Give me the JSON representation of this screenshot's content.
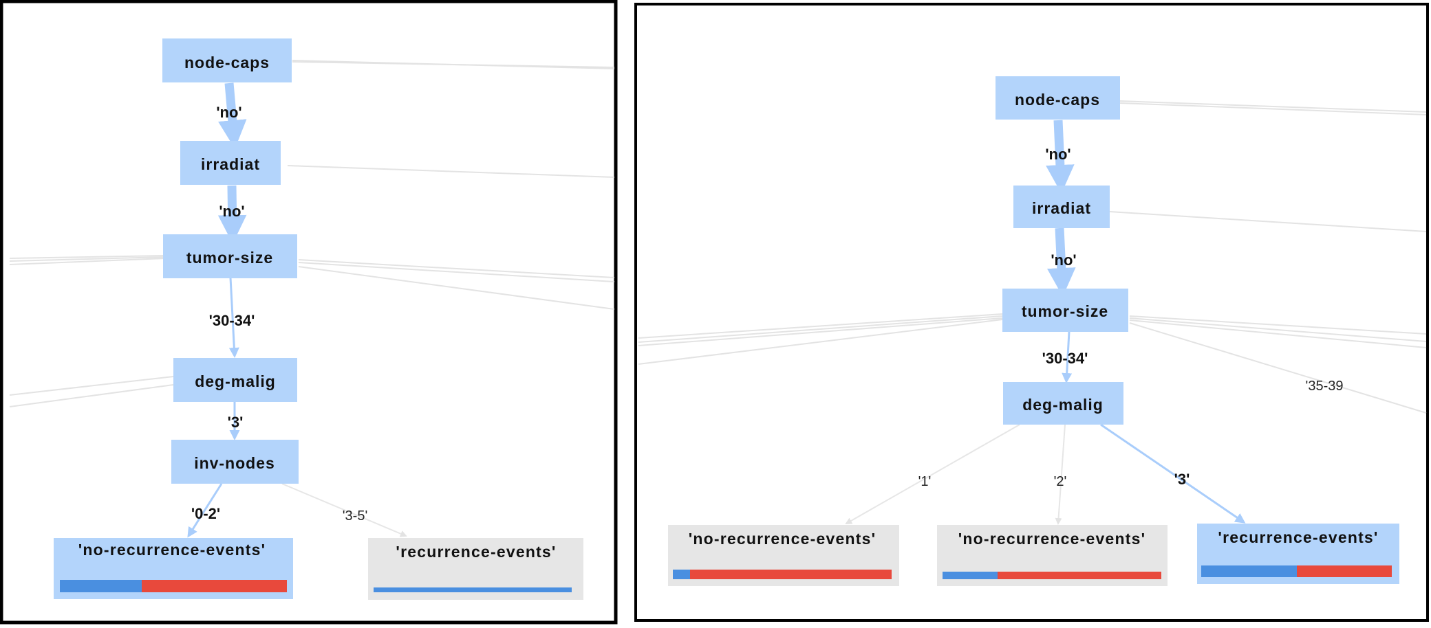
{
  "colors": {
    "node_fill": "#b3d4fb",
    "leaf_fill": "#e6e6e6",
    "bar_blue": "#4a8fe0",
    "bar_red": "#e8493c",
    "panel_border": "#000000"
  },
  "left": {
    "nodes": {
      "node_caps": "node-caps",
      "irradiat": "irradiat",
      "tumor_size": "tumor-size",
      "deg_malig": "deg-malig",
      "inv_nodes": "inv-nodes"
    },
    "edges": {
      "e1": "'no'",
      "e2": "'no'",
      "e3": "'30-34'",
      "e4": "'3'",
      "e5": "'0-2'",
      "e6": "'3-5'"
    },
    "leaves": {
      "leaf1": {
        "label": "'no-recurrence-events'",
        "blue_fraction": 0.36
      },
      "leaf2": {
        "label": "'recurrence-events'",
        "blue_fraction": 1.0
      }
    }
  },
  "right": {
    "nodes": {
      "node_caps": "node-caps",
      "irradiat": "irradiat",
      "tumor_size": "tumor-size",
      "deg_malig": "deg-malig"
    },
    "edges": {
      "e1": "'no'",
      "e2": "'no'",
      "e3": "'30-34'",
      "e4": "'35-39",
      "e5": "'1'",
      "e6": "'2'",
      "e7": "'3'"
    },
    "leaves": {
      "leaf1": {
        "label": "'no-recurrence-events'",
        "blue_fraction": 0.08
      },
      "leaf2": {
        "label": "'no-recurrence-events'",
        "blue_fraction": 0.25
      },
      "leaf3": {
        "label": "'recurrence-events'",
        "blue_fraction": 0.5
      }
    }
  }
}
